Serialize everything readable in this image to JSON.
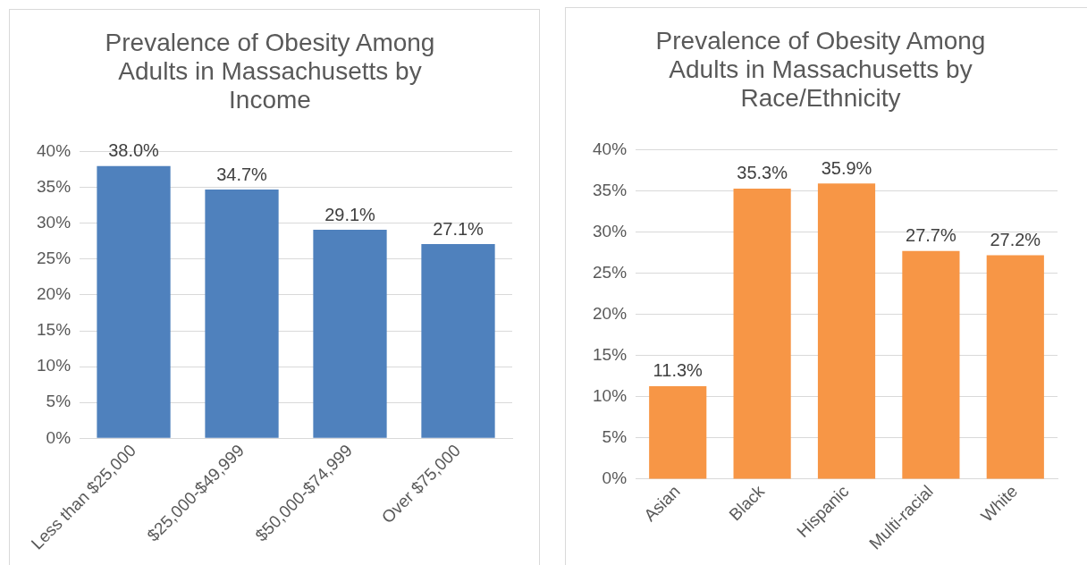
{
  "chart_data": [
    {
      "type": "bar",
      "title": "Prevalence of Obesity Among Adults in Massachusetts by Income",
      "categories": [
        "Less than $25,000",
        "$25,000-$49,999",
        "$50,000-$74,999",
        "Over $75,000"
      ],
      "values": [
        38.0,
        34.7,
        29.1,
        27.1
      ],
      "color": "#4f81bd",
      "value_labels": [
        "38.0%",
        "34.7%",
        "29.1%",
        "27.1%"
      ],
      "ylim": [
        0,
        40
      ],
      "yticks": [
        {
          "value": 0,
          "label": "0%"
        },
        {
          "value": 5,
          "label": "5%"
        },
        {
          "value": 10,
          "label": "10%"
        },
        {
          "value": 15,
          "label": "15%"
        },
        {
          "value": 20,
          "label": "20%"
        },
        {
          "value": 25,
          "label": "25%"
        },
        {
          "value": 30,
          "label": "30%"
        },
        {
          "value": 35,
          "label": "35%"
        },
        {
          "value": 40,
          "label": "40%"
        }
      ],
      "grid": "y",
      "legend": false
    },
    {
      "type": "bar",
      "title": "Prevalence of Obesity Among Adults in Massachusetts by Race/Ethnicity",
      "categories": [
        "Asian",
        "Black",
        "Hispanic",
        "Multi-racial",
        "White"
      ],
      "values": [
        11.3,
        35.3,
        35.9,
        27.7,
        27.2
      ],
      "color": "#f79646",
      "value_labels": [
        "11.3%",
        "35.3%",
        "35.9%",
        "27.7%",
        "27.2%"
      ],
      "ylim": [
        0,
        40
      ],
      "yticks": [
        {
          "value": 0,
          "label": "0%"
        },
        {
          "value": 5,
          "label": "5%"
        },
        {
          "value": 10,
          "label": "10%"
        },
        {
          "value": 15,
          "label": "15%"
        },
        {
          "value": 20,
          "label": "20%"
        },
        {
          "value": 25,
          "label": "25%"
        },
        {
          "value": 30,
          "label": "30%"
        },
        {
          "value": 35,
          "label": "35%"
        },
        {
          "value": 40,
          "label": "40%"
        }
      ],
      "grid": "y",
      "legend": false
    }
  ]
}
